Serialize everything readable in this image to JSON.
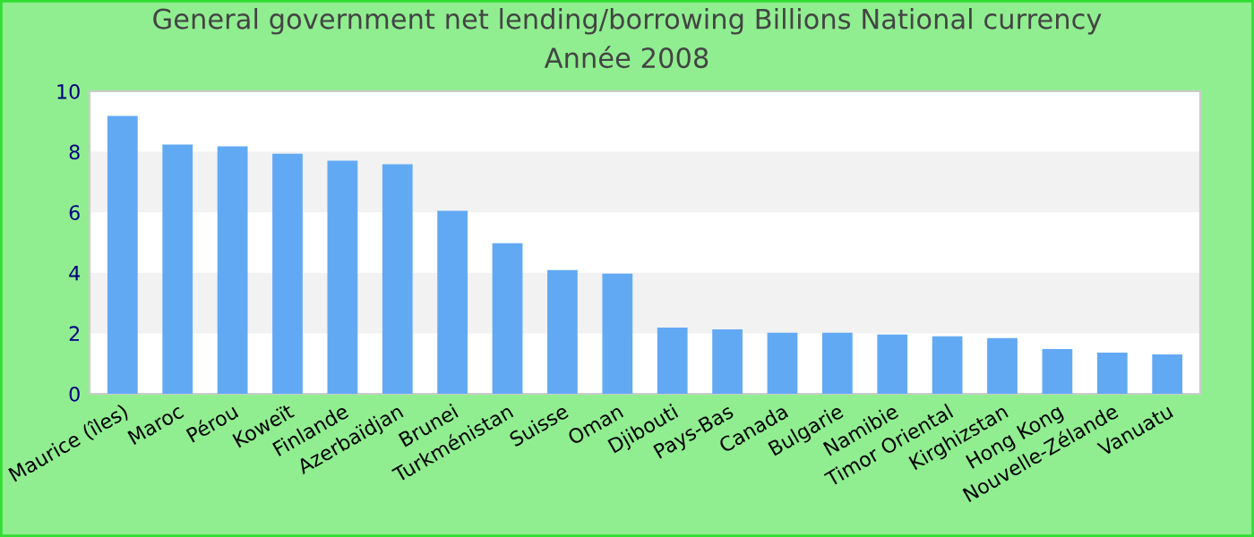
{
  "chart_data": {
    "type": "bar",
    "title": "General government net lending/borrowing Billions National currency\nAnnée 2008",
    "categories": [
      "Maurice (îles)",
      "Maroc",
      "Pérou",
      "Koweït",
      "Finlande",
      "Azerbaïdjan",
      "Brunei",
      "Turkménistan",
      "Suisse",
      "Oman",
      "Djibouti",
      "Pays-Bas",
      "Canada",
      "Bulgarie",
      "Namibie",
      "Timor Oriental",
      "Kirghizstan",
      "Hong Kong",
      "Nouvelle-Zélande",
      "Vanuatu"
    ],
    "values": [
      9.19,
      8.24,
      8.18,
      7.94,
      7.71,
      7.59,
      6.05,
      4.98,
      4.09,
      3.97,
      2.19,
      2.13,
      2.02,
      2.02,
      1.96,
      1.9,
      1.84,
      1.48,
      1.36,
      1.3
    ],
    "color": "#62a9f4",
    "ylim": [
      0,
      10
    ],
    "yticks": [
      0,
      2,
      4,
      6,
      8,
      10
    ],
    "bands": [
      {
        "axis": "y",
        "from": 2,
        "to": 4,
        "color": "#f2f2f2"
      },
      {
        "axis": "y",
        "from": 6,
        "to": 8,
        "color": "#f2f2f2"
      }
    ],
    "legend": false
  }
}
